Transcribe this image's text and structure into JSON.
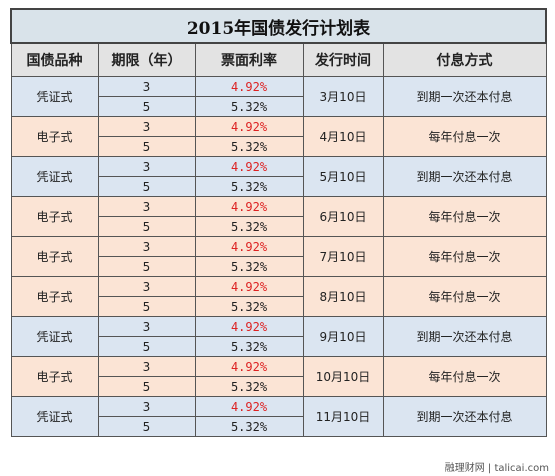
{
  "title": "2015年国债发行计划表",
  "headers": [
    "国债品种",
    "期限（年）",
    "票面利率",
    "发行时间",
    "付息方式"
  ],
  "colors": {
    "red_rate": "#dd2222",
    "blue_row": "#dbe5f1",
    "peach_row": "#fbe4d5"
  },
  "rows": [
    {
      "kind": "凭证式",
      "tone": "blue",
      "term1": "3",
      "rate1": "4.92%",
      "term2": "5",
      "rate2": "5.32%",
      "date": "3月10日",
      "pay": "到期一次还本付息"
    },
    {
      "kind": "电子式",
      "tone": "peach",
      "term1": "3",
      "rate1": "4.92%",
      "term2": "5",
      "rate2": "5.32%",
      "date": "4月10日",
      "pay": "每年付息一次"
    },
    {
      "kind": "凭证式",
      "tone": "blue",
      "term1": "3",
      "rate1": "4.92%",
      "term2": "5",
      "rate2": "5.32%",
      "date": "5月10日",
      "pay": "到期一次还本付息"
    },
    {
      "kind": "电子式",
      "tone": "peach",
      "term1": "3",
      "rate1": "4.92%",
      "term2": "5",
      "rate2": "5.32%",
      "date": "6月10日",
      "pay": "每年付息一次"
    },
    {
      "kind": "电子式",
      "tone": "peach",
      "term1": "3",
      "rate1": "4.92%",
      "term2": "5",
      "rate2": "5.32%",
      "date": "7月10日",
      "pay": "每年付息一次"
    },
    {
      "kind": "电子式",
      "tone": "peach",
      "term1": "3",
      "rate1": "4.92%",
      "term2": "5",
      "rate2": "5.32%",
      "date": "8月10日",
      "pay": "每年付息一次"
    },
    {
      "kind": "凭证式",
      "tone": "blue",
      "term1": "3",
      "rate1": "4.92%",
      "term2": "5",
      "rate2": "5.32%",
      "date": "9月10日",
      "pay": "到期一次还本付息"
    },
    {
      "kind": "电子式",
      "tone": "peach",
      "term1": "3",
      "rate1": "4.92%",
      "term2": "5",
      "rate2": "5.32%",
      "date": "10月10日",
      "pay": "每年付息一次"
    },
    {
      "kind": "凭证式",
      "tone": "blue",
      "term1": "3",
      "rate1": "4.92%",
      "term2": "5",
      "rate2": "5.32%",
      "date": "11月10日",
      "pay": "到期一次还本付息"
    }
  ],
  "footer": "融理财网 | talicai.com"
}
